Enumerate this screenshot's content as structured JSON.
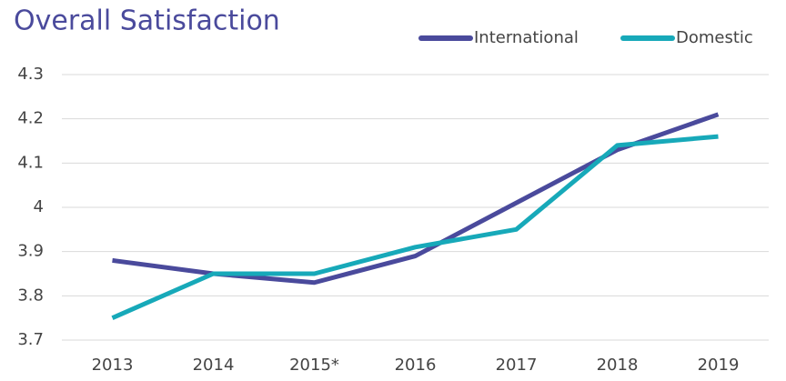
{
  "chart_data": {
    "type": "line",
    "title": "Overall Satisfaction",
    "categories": [
      "2013",
      "2014",
      "2015*",
      "2016",
      "2017",
      "2018",
      "2019"
    ],
    "series": [
      {
        "name": "International",
        "color": "#4a4a9c",
        "values": [
          3.88,
          3.85,
          3.83,
          3.89,
          4.01,
          4.13,
          4.21
        ]
      },
      {
        "name": "Domestic",
        "color": "#17a9b9",
        "values": [
          3.75,
          3.85,
          3.85,
          3.91,
          3.95,
          4.14,
          4.16
        ]
      }
    ],
    "ylim": [
      3.7,
      4.3
    ],
    "yticks": [
      3.7,
      3.8,
      3.9,
      4,
      4.1,
      4.2,
      4.3
    ],
    "grid": true,
    "legend": "top-right"
  }
}
